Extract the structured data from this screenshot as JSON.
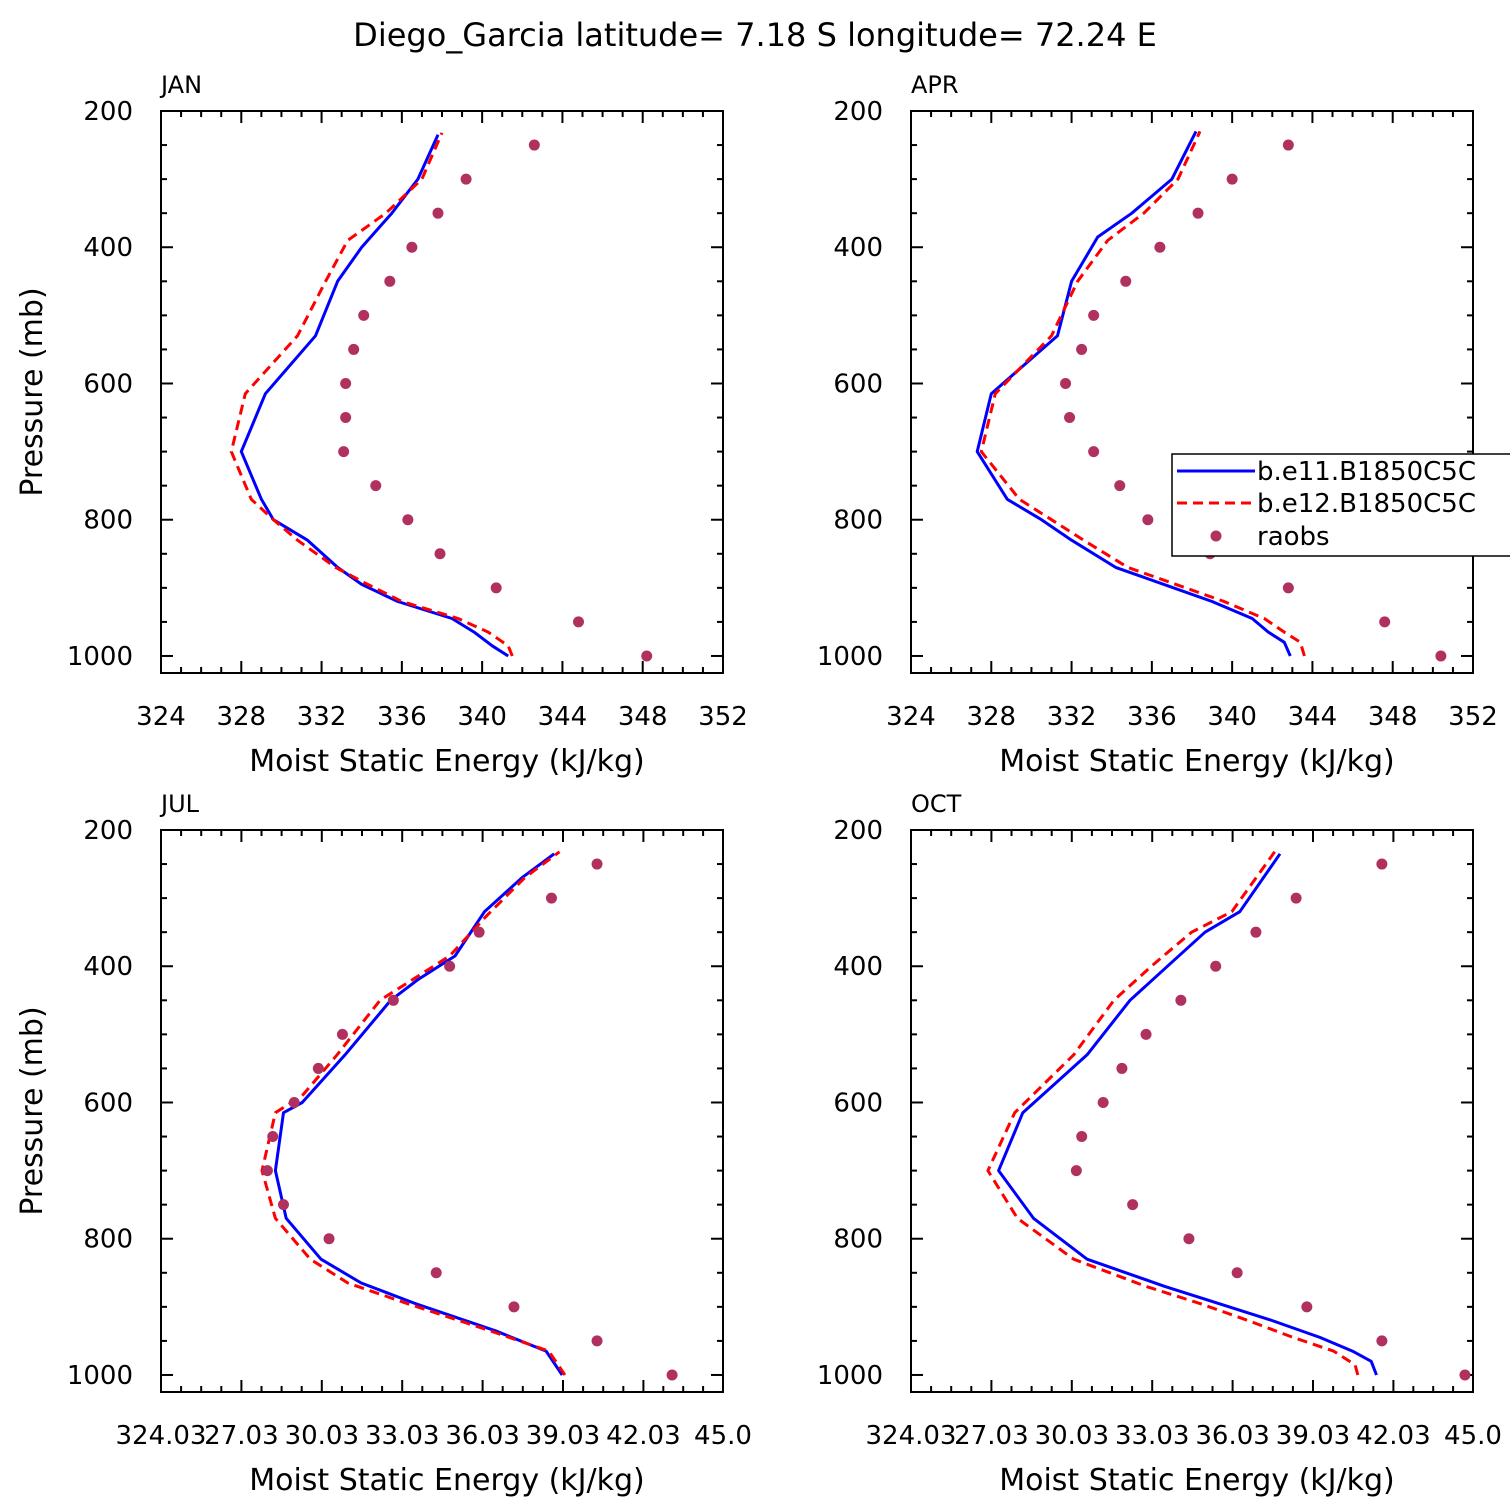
{
  "title": "Diego_Garcia  latitude= 7.18 S longitude= 72.24 E",
  "colors": {
    "model1": "#0000ff",
    "model2": "#ff0000",
    "obs": "#b03060"
  },
  "legend": {
    "entries": [
      "b.e11.B1850C5C",
      "b.e12.B1850C5C",
      "raobs"
    ]
  },
  "chart_data": [
    {
      "type": "line",
      "panel": "JAN",
      "xlabel": "Moist Static Energy (kJ/kg)",
      "ylabel": "Pressure (mb)",
      "xlim": [
        324,
        352
      ],
      "ylim": [
        1025,
        200
      ],
      "x_ticks": [
        324,
        328,
        332,
        336,
        340,
        344,
        348,
        352
      ],
      "x_tick_labels": [
        "324",
        "328",
        "332",
        "336",
        "340",
        "344",
        "348",
        "352"
      ],
      "y_ticks": [
        200,
        400,
        600,
        800,
        1000
      ],
      "y_tick_labels": [
        "200",
        "400",
        "600",
        "800",
        "1000"
      ],
      "series": [
        {
          "name": "b.e11.B1850C5C",
          "style": "solid",
          "points": [
            [
              341.3,
              1000
            ],
            [
              340.5,
              985
            ],
            [
              339.6,
              965
            ],
            [
              338.5,
              945
            ],
            [
              335.8,
              920
            ],
            [
              334.0,
              895
            ],
            [
              332.8,
              870
            ],
            [
              331.3,
              830
            ],
            [
              329.6,
              800
            ],
            [
              329.0,
              770
            ],
            [
              328.0,
              700
            ],
            [
              329.2,
              615
            ],
            [
              331.7,
              530
            ],
            [
              332.8,
              450
            ],
            [
              334.0,
              400
            ],
            [
              335.5,
              350
            ],
            [
              336.8,
              300
            ],
            [
              337.8,
              235
            ]
          ]
        },
        {
          "name": "b.e12.B1850C5C",
          "style": "dashed",
          "points": [
            [
              341.5,
              1000
            ],
            [
              341.3,
              985
            ],
            [
              340.3,
              965
            ],
            [
              338.8,
              945
            ],
            [
              336.0,
              920
            ],
            [
              334.3,
              895
            ],
            [
              332.7,
              870
            ],
            [
              330.8,
              830
            ],
            [
              329.6,
              800
            ],
            [
              328.5,
              770
            ],
            [
              327.5,
              700
            ],
            [
              328.2,
              615
            ],
            [
              330.8,
              530
            ],
            [
              332.2,
              450
            ],
            [
              333.3,
              390
            ],
            [
              335.2,
              350
            ],
            [
              337.0,
              300
            ],
            [
              338.0,
              232
            ]
          ]
        },
        {
          "name": "raobs",
          "style": "dots",
          "points": [
            [
              348.2,
              1000
            ],
            [
              344.8,
              950
            ],
            [
              340.7,
              900
            ],
            [
              337.9,
              850
            ],
            [
              336.3,
              800
            ],
            [
              334.7,
              750
            ],
            [
              333.1,
              700
            ],
            [
              333.2,
              650
            ],
            [
              333.2,
              600
            ],
            [
              333.6,
              550
            ],
            [
              334.1,
              500
            ],
            [
              335.4,
              450
            ],
            [
              336.5,
              400
            ],
            [
              337.8,
              350
            ],
            [
              339.2,
              300
            ],
            [
              342.6,
              250
            ]
          ]
        }
      ]
    },
    {
      "type": "line",
      "panel": "APR",
      "xlabel": "Moist Static Energy (kJ/kg)",
      "ylabel": "",
      "xlim": [
        324,
        352
      ],
      "ylim": [
        1025,
        200
      ],
      "x_ticks": [
        324,
        328,
        332,
        336,
        340,
        344,
        348,
        352
      ],
      "x_tick_labels": [
        "324",
        "328",
        "332",
        "336",
        "340",
        "344",
        "348",
        "352"
      ],
      "y_ticks": [
        200,
        400,
        600,
        800,
        1000
      ],
      "y_tick_labels": [
        "200",
        "400",
        "600",
        "800",
        "1000"
      ],
      "series": [
        {
          "name": "b.e11.B1850C5C",
          "style": "solid",
          "points": [
            [
              342.9,
              1000
            ],
            [
              342.6,
              980
            ],
            [
              341.8,
              965
            ],
            [
              341.0,
              945
            ],
            [
              339.0,
              920
            ],
            [
              336.6,
              895
            ],
            [
              334.2,
              870
            ],
            [
              332.0,
              830
            ],
            [
              330.5,
              800
            ],
            [
              328.8,
              770
            ],
            [
              327.3,
              700
            ],
            [
              328.0,
              615
            ],
            [
              331.3,
              530
            ],
            [
              332.0,
              450
            ],
            [
              333.3,
              385
            ],
            [
              335.0,
              350
            ],
            [
              337.0,
              300
            ],
            [
              338.2,
              230
            ]
          ]
        },
        {
          "name": "b.e12.B1850C5C",
          "style": "dashed",
          "points": [
            [
              343.6,
              1000
            ],
            [
              343.4,
              980
            ],
            [
              342.6,
              965
            ],
            [
              341.6,
              945
            ],
            [
              339.6,
              920
            ],
            [
              337.2,
              895
            ],
            [
              334.8,
              870
            ],
            [
              332.6,
              830
            ],
            [
              331.0,
              800
            ],
            [
              329.4,
              770
            ],
            [
              327.5,
              700
            ],
            [
              328.2,
              615
            ],
            [
              331.0,
              530
            ],
            [
              332.3,
              450
            ],
            [
              333.8,
              390
            ],
            [
              335.6,
              350
            ],
            [
              337.3,
              300
            ],
            [
              338.4,
              230
            ]
          ]
        },
        {
          "name": "raobs",
          "style": "dots",
          "points": [
            [
              350.4,
              1000
            ],
            [
              347.6,
              950
            ],
            [
              342.8,
              900
            ],
            [
              338.9,
              850
            ],
            [
              335.8,
              800
            ],
            [
              334.4,
              750
            ],
            [
              333.1,
              700
            ],
            [
              331.9,
              650
            ],
            [
              331.7,
              600
            ],
            [
              332.5,
              550
            ],
            [
              333.1,
              500
            ],
            [
              334.7,
              450
            ],
            [
              336.4,
              400
            ],
            [
              338.3,
              350
            ],
            [
              340.0,
              300
            ],
            [
              342.8,
              250
            ]
          ]
        }
      ]
    },
    {
      "type": "line",
      "panel": "JUL",
      "xlabel": "Moist Static Energy (kJ/kg)",
      "ylabel": "Pressure (mb)",
      "xlim": [
        324.03,
        345.0
      ],
      "ylim": [
        1025,
        200
      ],
      "x_ticks": [
        324.03,
        327.03,
        330.03,
        333.03,
        336.03,
        339.03,
        342.03,
        345.0
      ],
      "x_tick_labels": [
        "324.03",
        "27.03",
        "30.03",
        "33.03",
        "36.03",
        "39.03",
        "42.03",
        "45.0"
      ],
      "y_ticks": [
        200,
        400,
        600,
        800,
        1000
      ],
      "y_tick_labels": [
        "200",
        "400",
        "600",
        "800",
        "1000"
      ],
      "series": [
        {
          "name": "b.e11.B1850C5C",
          "style": "solid",
          "points": [
            [
              339.0,
              1000
            ],
            [
              338.4,
              965
            ],
            [
              336.5,
              935
            ],
            [
              333.5,
              895
            ],
            [
              331.5,
              865
            ],
            [
              330.0,
              830
            ],
            [
              328.7,
              770
            ],
            [
              328.3,
              700
            ],
            [
              328.6,
              615
            ],
            [
              329.3,
              600
            ],
            [
              330.9,
              530
            ],
            [
              332.6,
              450
            ],
            [
              333.6,
              420
            ],
            [
              335.0,
              385
            ],
            [
              336.1,
              320
            ],
            [
              337.5,
              270
            ],
            [
              338.7,
              235
            ]
          ]
        },
        {
          "name": "b.e12.B1850C5C",
          "style": "dashed",
          "points": [
            [
              339.1,
              1000
            ],
            [
              338.5,
              965
            ],
            [
              336.3,
              935
            ],
            [
              333.2,
              895
            ],
            [
              331.0,
              865
            ],
            [
              329.6,
              830
            ],
            [
              328.3,
              770
            ],
            [
              327.8,
              700
            ],
            [
              328.3,
              615
            ],
            [
              329.3,
              590
            ],
            [
              330.6,
              530
            ],
            [
              332.2,
              450
            ],
            [
              333.4,
              420
            ],
            [
              334.8,
              385
            ],
            [
              336.2,
              325
            ],
            [
              337.6,
              270
            ],
            [
              338.9,
              232
            ]
          ]
        },
        {
          "name": "raobs",
          "style": "dots",
          "points": [
            [
              343.1,
              1000
            ],
            [
              340.3,
              950
            ],
            [
              337.2,
              900
            ],
            [
              334.3,
              850
            ],
            [
              330.3,
              800
            ],
            [
              328.6,
              750
            ],
            [
              328.0,
              700
            ],
            [
              328.2,
              650
            ],
            [
              329.0,
              600
            ],
            [
              329.9,
              550
            ],
            [
              330.8,
              500
            ],
            [
              332.7,
              450
            ],
            [
              334.8,
              400
            ],
            [
              335.9,
              350
            ],
            [
              338.6,
              300
            ],
            [
              340.3,
              250
            ]
          ]
        }
      ]
    },
    {
      "type": "line",
      "panel": "OCT",
      "xlabel": "Moist Static Energy (kJ/kg)",
      "ylabel": "",
      "xlim": [
        324.03,
        345.0
      ],
      "ylim": [
        1025,
        200
      ],
      "x_ticks": [
        324.03,
        327.03,
        330.03,
        333.03,
        336.03,
        339.03,
        342.03,
        345.0
      ],
      "x_tick_labels": [
        "324.03",
        "27.03",
        "30.03",
        "33.03",
        "36.03",
        "39.03",
        "42.03",
        "45.0"
      ],
      "y_ticks": [
        200,
        400,
        600,
        800,
        1000
      ],
      "y_tick_labels": [
        "200",
        "400",
        "600",
        "800",
        "1000"
      ],
      "series": [
        {
          "name": "b.e11.B1850C5C",
          "style": "solid",
          "points": [
            [
              341.4,
              1000
            ],
            [
              341.2,
              980
            ],
            [
              340.5,
              965
            ],
            [
              339.3,
              945
            ],
            [
              337.5,
              920
            ],
            [
              335.5,
              895
            ],
            [
              333.5,
              870
            ],
            [
              330.6,
              830
            ],
            [
              328.6,
              770
            ],
            [
              327.3,
              700
            ],
            [
              328.2,
              615
            ],
            [
              330.6,
              530
            ],
            [
              332.2,
              450
            ],
            [
              333.6,
              400
            ],
            [
              335.0,
              350
            ],
            [
              336.3,
              320
            ],
            [
              337.8,
              235
            ]
          ]
        },
        {
          "name": "b.e12.B1850C5C",
          "style": "dashed",
          "points": [
            [
              340.7,
              1000
            ],
            [
              340.6,
              985
            ],
            [
              339.8,
              965
            ],
            [
              338.3,
              945
            ],
            [
              336.6,
              920
            ],
            [
              334.8,
              895
            ],
            [
              332.8,
              870
            ],
            [
              330.1,
              830
            ],
            [
              328.0,
              770
            ],
            [
              326.9,
              700
            ],
            [
              327.9,
              615
            ],
            [
              330.1,
              530
            ],
            [
              331.6,
              450
            ],
            [
              333.0,
              400
            ],
            [
              334.5,
              350
            ],
            [
              336.0,
              320
            ],
            [
              337.6,
              232
            ]
          ]
        },
        {
          "name": "raobs",
          "style": "dots",
          "points": [
            [
              344.7,
              1000
            ],
            [
              341.6,
              950
            ],
            [
              338.8,
              900
            ],
            [
              336.2,
              850
            ],
            [
              334.4,
              800
            ],
            [
              332.3,
              750
            ],
            [
              330.2,
              700
            ],
            [
              330.4,
              650
            ],
            [
              331.2,
              600
            ],
            [
              331.9,
              550
            ],
            [
              332.8,
              500
            ],
            [
              334.1,
              450
            ],
            [
              335.4,
              400
            ],
            [
              336.9,
              350
            ],
            [
              338.4,
              300
            ],
            [
              341.6,
              250
            ]
          ]
        }
      ]
    }
  ]
}
